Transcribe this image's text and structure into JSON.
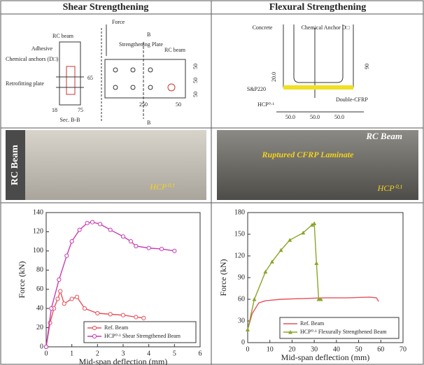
{
  "headers": [
    "Shear Strengthening",
    "Flexural Strengthening"
  ],
  "diagrams": [
    {
      "labels": [
        "Force",
        "B",
        "B",
        "RC beam",
        "Adhesive",
        "Chemical anchors (D□)",
        "Retrofitting plate",
        "65",
        "18",
        "75",
        "Sec. B-B",
        "Strengthening Plate",
        "RC beam",
        "250",
        "50",
        "50",
        "50",
        "50"
      ]
    },
    {
      "labels": [
        "Concrete",
        "Chemical Anchor D□",
        "90",
        "20.0",
        "S&P220",
        "HCP⁰·¹",
        "Double-CFRP",
        "50.0",
        "50.0",
        "50.0"
      ]
    }
  ],
  "photos": [
    {
      "labels": [
        "RC Beam",
        "HCP⁰·¹"
      ]
    },
    {
      "labels": [
        "RC Beam",
        "Ruptured CFRP Laminate",
        "HCP⁰·¹"
      ]
    }
  ],
  "chart_data": [
    {
      "type": "line",
      "x_label": "Mid-span deflection (mm)",
      "y_label": "Force (kN)",
      "xlim": [
        0,
        6
      ],
      "xticks": [
        0,
        1,
        2,
        3,
        4,
        5,
        6
      ],
      "ylim": [
        0,
        140
      ],
      "yticks": [
        0,
        20,
        40,
        60,
        80,
        100,
        120,
        140
      ],
      "legend": "lower right",
      "series": [
        {
          "name": "Ref. Beam",
          "color": "#e8505b",
          "marker": "circle",
          "x": [
            0,
            0.15,
            0.3,
            0.45,
            0.55,
            0.7,
            1.0,
            1.2,
            1.5,
            2.0,
            2.5,
            3.0,
            3.5,
            3.8
          ],
          "values": [
            0,
            25,
            40,
            50,
            58,
            45,
            50,
            52,
            40,
            35,
            34,
            33,
            31,
            30
          ]
        },
        {
          "name": "HCP⁰·¹ Shear Strengthened Beam",
          "color": "#c83cb4",
          "marker": "circle",
          "x": [
            0,
            0.2,
            0.5,
            0.8,
            1.0,
            1.3,
            1.6,
            1.8,
            2.1,
            2.5,
            3.0,
            3.3,
            3.5,
            4.0,
            4.5,
            5.0
          ],
          "values": [
            0,
            40,
            70,
            95,
            110,
            122,
            129,
            130,
            128,
            122,
            115,
            110,
            105,
            103,
            102,
            100
          ]
        }
      ]
    },
    {
      "type": "line",
      "x_label": "Mid-span deflection (mm)",
      "y_label": "Force (kN)",
      "xlim": [
        0,
        70
      ],
      "xticks": [
        0,
        10,
        20,
        30,
        40,
        50,
        60,
        70
      ],
      "ylim": [
        0,
        180
      ],
      "yticks": [
        0,
        30,
        60,
        90,
        120,
        150,
        180
      ],
      "legend": "lower right",
      "series": [
        {
          "name": "Ref. Beam",
          "color": "#e8505b",
          "marker": "none",
          "x": [
            0,
            2,
            5,
            8,
            15,
            25,
            35,
            45,
            55,
            58,
            59
          ],
          "values": [
            18,
            40,
            55,
            58,
            60,
            61,
            62,
            62,
            63,
            62,
            57
          ]
        },
        {
          "name": "HCP⁰·¹ Flexurally Strengthened Beam",
          "color": "#8aa52a",
          "marker": "triangle",
          "x": [
            0,
            3,
            8,
            11,
            15,
            19,
            25,
            29,
            30,
            31,
            32,
            33
          ],
          "values": [
            18,
            60,
            98,
            112,
            128,
            142,
            152,
            163,
            165,
            110,
            60,
            60
          ]
        }
      ]
    }
  ]
}
